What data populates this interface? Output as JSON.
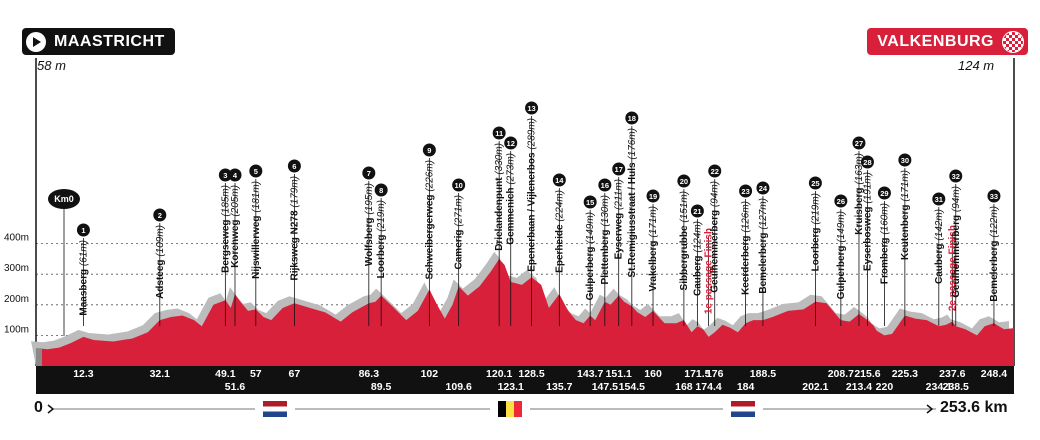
{
  "start": {
    "name": "MAASTRICHT",
    "elevation": "58 m"
  },
  "finish": {
    "name": "VALKENBURG",
    "elevation": "124 m"
  },
  "distance": {
    "start": "0",
    "end": "253.6 km"
  },
  "km0_label": "Km0",
  "colors": {
    "profile": "#d8203a",
    "shadow": "#bdbcbc",
    "ink": "#111111",
    "finish": "#d8203a"
  },
  "icons": [
    "play-icon",
    "checkered-flag-icon",
    "netherlands-flag-icon",
    "belgium-flag-icon"
  ],
  "chart_data": {
    "type": "area",
    "x_unit": "km",
    "y_unit": "m",
    "xlim": [
      0,
      253.6
    ],
    "ylim": [
      0,
      440
    ],
    "y_ticks": [
      100,
      200,
      300,
      400
    ],
    "y_tick_labels": [
      "100m",
      "200m",
      "300m",
      "400m"
    ],
    "profile": [
      [
        0,
        58
      ],
      [
        3,
        55
      ],
      [
        6,
        60
      ],
      [
        9,
        75
      ],
      [
        12.3,
        95
      ],
      [
        15,
        85
      ],
      [
        20,
        80
      ],
      [
        25,
        90
      ],
      [
        29,
        110
      ],
      [
        32.1,
        150
      ],
      [
        35,
        160
      ],
      [
        38,
        165
      ],
      [
        41,
        150
      ],
      [
        43,
        130
      ],
      [
        46,
        200
      ],
      [
        49.1,
        215
      ],
      [
        50.5,
        190
      ],
      [
        51.6,
        235
      ],
      [
        53,
        210
      ],
      [
        55,
        180
      ],
      [
        57,
        185
      ],
      [
        59,
        160
      ],
      [
        61,
        150
      ],
      [
        64,
        190
      ],
      [
        67,
        205
      ],
      [
        71,
        190
      ],
      [
        75,
        175
      ],
      [
        79,
        145
      ],
      [
        82,
        175
      ],
      [
        86.3,
        205
      ],
      [
        88,
        210
      ],
      [
        89.5,
        230
      ],
      [
        92,
        200
      ],
      [
        96,
        150
      ],
      [
        99,
        180
      ],
      [
        102,
        250
      ],
      [
        104,
        200
      ],
      [
        106,
        155
      ],
      [
        108,
        200
      ],
      [
        109.6,
        260
      ],
      [
        112,
        230
      ],
      [
        115,
        260
      ],
      [
        118,
        310
      ],
      [
        120.1,
        350
      ],
      [
        121.5,
        330
      ],
      [
        123.1,
        275
      ],
      [
        126,
        265
      ],
      [
        128.5,
        290
      ],
      [
        131,
        265
      ],
      [
        133,
        190
      ],
      [
        135.7,
        235
      ],
      [
        138,
        180
      ],
      [
        140,
        150
      ],
      [
        142,
        140
      ],
      [
        143.7,
        165
      ],
      [
        145,
        150
      ],
      [
        147.5,
        210
      ],
      [
        149,
        200
      ],
      [
        151.1,
        230
      ],
      [
        152.5,
        210
      ],
      [
        154.5,
        195
      ],
      [
        156,
        175
      ],
      [
        158,
        160
      ],
      [
        160,
        180
      ],
      [
        163,
        140
      ],
      [
        166,
        140
      ],
      [
        168,
        150
      ],
      [
        170,
        110
      ],
      [
        171.5,
        130
      ],
      [
        173,
        120
      ],
      [
        174.4,
        95
      ],
      [
        176,
        110
      ],
      [
        178,
        135
      ],
      [
        180,
        125
      ],
      [
        182,
        110
      ],
      [
        184,
        140
      ],
      [
        186,
        150
      ],
      [
        188.5,
        150
      ],
      [
        191,
        160
      ],
      [
        195,
        180
      ],
      [
        199,
        185
      ],
      [
        202.1,
        210
      ],
      [
        205,
        205
      ],
      [
        208.7,
        150
      ],
      [
        211,
        145
      ],
      [
        213.4,
        170
      ],
      [
        215.6,
        150
      ],
      [
        217,
        135
      ],
      [
        218,
        115
      ],
      [
        220,
        100
      ],
      [
        222,
        105
      ],
      [
        225.3,
        165
      ],
      [
        228,
        155
      ],
      [
        231,
        150
      ],
      [
        234.1,
        130
      ],
      [
        236,
        135
      ],
      [
        237.6,
        145
      ],
      [
        238.5,
        130
      ],
      [
        241,
        120
      ],
      [
        244,
        100
      ],
      [
        246,
        130
      ],
      [
        248.4,
        140
      ],
      [
        251,
        120
      ],
      [
        253.6,
        124
      ]
    ],
    "km_markers": [
      {
        "km": 12.3,
        "label": "12.3",
        "row": 1
      },
      {
        "km": 32.1,
        "label": "32.1",
        "row": 1
      },
      {
        "km": 49.1,
        "label": "49.1",
        "row": 1
      },
      {
        "km": 51.6,
        "label": "51.6",
        "row": 2
      },
      {
        "km": 57,
        "label": "57",
        "row": 1
      },
      {
        "km": 67,
        "label": "67",
        "row": 1
      },
      {
        "km": 86.3,
        "label": "86.3",
        "row": 1
      },
      {
        "km": 89.5,
        "label": "89.5",
        "row": 2
      },
      {
        "km": 102,
        "label": "102",
        "row": 1
      },
      {
        "km": 109.6,
        "label": "109.6",
        "row": 2
      },
      {
        "km": 120.1,
        "label": "120.1",
        "row": 1
      },
      {
        "km": 123.1,
        "label": "123.1",
        "row": 2
      },
      {
        "km": 128.5,
        "label": "128.5",
        "row": 1
      },
      {
        "km": 135.7,
        "label": "135.7",
        "row": 2
      },
      {
        "km": 143.7,
        "label": "143.7",
        "row": 1
      },
      {
        "km": 147.5,
        "label": "147.5",
        "row": 2
      },
      {
        "km": 151.1,
        "label": "151.1",
        "row": 1
      },
      {
        "km": 154.5,
        "label": "154.5",
        "row": 2
      },
      {
        "km": 160,
        "label": "160",
        "row": 1
      },
      {
        "km": 168,
        "label": "168",
        "row": 2
      },
      {
        "km": 171.5,
        "label": "171.5",
        "row": 1
      },
      {
        "km": 174.4,
        "label": "174.4",
        "row": 2
      },
      {
        "km": 176,
        "label": "176",
        "row": 1
      },
      {
        "km": 184,
        "label": "184",
        "row": 2
      },
      {
        "km": 188.5,
        "label": "188.5",
        "row": 1
      },
      {
        "km": 202.1,
        "label": "202.1",
        "row": 2
      },
      {
        "km": 208.7,
        "label": "208.7",
        "row": 1
      },
      {
        "km": 213.4,
        "label": "213.4",
        "row": 2
      },
      {
        "km": 215.6,
        "label": "215.6",
        "row": 1
      },
      {
        "km": 220,
        "label": "220",
        "row": 2
      },
      {
        "km": 225.3,
        "label": "225.3",
        "row": 1
      },
      {
        "km": 234.1,
        "label": "234.1",
        "row": 2
      },
      {
        "km": 237.6,
        "label": "237.6",
        "row": 1
      },
      {
        "km": 238.5,
        "label": "238.5",
        "row": 2
      },
      {
        "km": 248.4,
        "label": "248.4",
        "row": 1
      }
    ],
    "climbs": [
      {
        "num": "1",
        "km": 12.3,
        "name": "Maasberg",
        "alt": "(61m)",
        "pin_y": 230
      },
      {
        "num": "2",
        "km": 32.1,
        "name": "Adsteeg",
        "alt": "(109m)",
        "pin_y": 215
      },
      {
        "num": "3",
        "km": 49.1,
        "name": "Bergseweg",
        "alt": "(185m)",
        "pin_y": 175
      },
      {
        "num": "4",
        "km": 51.6,
        "name": "Korenweg",
        "alt": "(205m)",
        "pin_y": 175
      },
      {
        "num": "5",
        "km": 57,
        "name": "Nijswillerweg",
        "alt": "(181m)",
        "pin_y": 171
      },
      {
        "num": "6",
        "km": 67,
        "name": "Rijksweg N278",
        "alt": "(179m)",
        "pin_y": 166
      },
      {
        "num": "7",
        "km": 86.3,
        "name": "Wolfsberg",
        "alt": "(195m)",
        "pin_y": 173
      },
      {
        "num": "8",
        "km": 89.5,
        "name": "Loorberg",
        "alt": "(219m)",
        "pin_y": 190
      },
      {
        "num": "9",
        "km": 102,
        "name": "Schweibergerweg",
        "alt": "(226m)",
        "pin_y": 150
      },
      {
        "num": "10",
        "km": 109.6,
        "name": "Camerig",
        "alt": "(271m)",
        "pin_y": 185
      },
      {
        "num": "11",
        "km": 120.1,
        "name": "Drielandenpunt",
        "alt": "(330m)",
        "pin_y": 133
      },
      {
        "num": "12",
        "km": 123.1,
        "name": "Gemmenich",
        "alt": "(273m)",
        "pin_y": 143
      },
      {
        "num": "13",
        "km": 128.5,
        "name": "Epenerbaan / Vijlenerbos",
        "alt": "(289m)",
        "pin_y": 108
      },
      {
        "num": "14",
        "km": 135.7,
        "name": "Eperheide",
        "alt": "(224m)",
        "pin_y": 180
      },
      {
        "num": "15",
        "km": 143.7,
        "name": "Gulperberg",
        "alt": "(149m)",
        "pin_y": 202
      },
      {
        "num": "16",
        "km": 147.5,
        "name": "Plettenberg",
        "alt": "(130m)",
        "pin_y": 185
      },
      {
        "num": "17",
        "km": 151.1,
        "name": "Eyserweg",
        "alt": "(211m)",
        "pin_y": 169
      },
      {
        "num": "18",
        "km": 154.5,
        "name": "St.Remigiusstraat / Huls",
        "alt": "(176m)",
        "pin_y": 118
      },
      {
        "num": "19",
        "km": 160,
        "name": "Vrakelberg",
        "alt": "(171m)",
        "pin_y": 196
      },
      {
        "num": "20",
        "km": 168,
        "name": "Sibbergrubbe",
        "alt": "(151m)",
        "pin_y": 181
      },
      {
        "num": "21",
        "km": 171.5,
        "name": "Cauberg",
        "alt": "(124m)",
        "pin_y": 211
      },
      {
        "num": "",
        "km": 174.4,
        "name": "1e passage Finish",
        "alt": "",
        "pin_y": 228,
        "red": true
      },
      {
        "num": "22",
        "km": 176,
        "name": "Geulhemmerberg",
        "alt": "(94m)",
        "pin_y": 171
      },
      {
        "num": "23",
        "km": 184,
        "name": "Keerderberg",
        "alt": "(126m)",
        "pin_y": 191
      },
      {
        "num": "24",
        "km": 188.5,
        "name": "Bemelerberg",
        "alt": "(127m)",
        "pin_y": 188
      },
      {
        "num": "25",
        "km": 202.1,
        "name": "Loorberg",
        "alt": "(219m)",
        "pin_y": 183
      },
      {
        "num": "26",
        "km": 208.7,
        "name": "Gulperberg",
        "alt": "(149m)",
        "pin_y": 201
      },
      {
        "num": "27",
        "km": 213.4,
        "name": "Kruisberg",
        "alt": "(163m)",
        "pin_y": 143
      },
      {
        "num": "28",
        "km": 215.6,
        "name": "Eyserbosweg",
        "alt": "(191m)",
        "pin_y": 162
      },
      {
        "num": "29",
        "km": 220,
        "name": "Fromberg",
        "alt": "(160m)",
        "pin_y": 193
      },
      {
        "num": "30",
        "km": 225.3,
        "name": "Keutenberg",
        "alt": "(171m)",
        "pin_y": 160
      },
      {
        "num": "31",
        "km": 234.1,
        "name": "Cauberg",
        "alt": "(142m)",
        "pin_y": 199
      },
      {
        "num": "",
        "km": 237.6,
        "name": "2e passage Finish",
        "alt": "",
        "pin_y": 225,
        "red": true
      },
      {
        "num": "32",
        "km": 238.5,
        "name": "Geulhemmerberg",
        "alt": "(94m)",
        "pin_y": 176
      },
      {
        "num": "33",
        "km": 248.4,
        "name": "Bemelerberg",
        "alt": "(122m)",
        "pin_y": 196
      }
    ]
  }
}
